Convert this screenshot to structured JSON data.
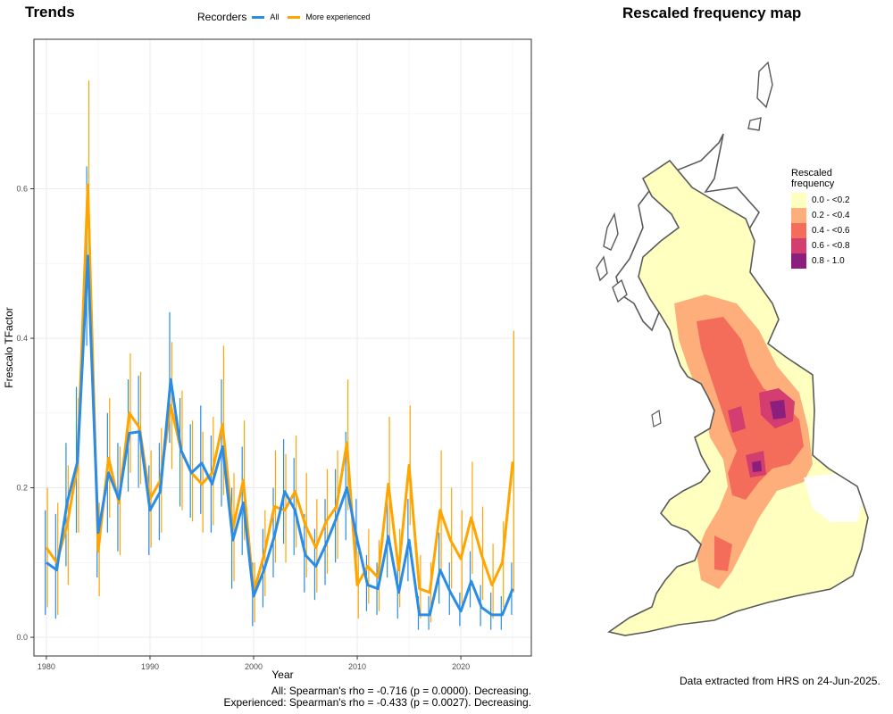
{
  "left_title": "Trends",
  "right_title": "Rescaled frequency map",
  "legend": {
    "title": "Recorders",
    "items": [
      {
        "label": "All",
        "color": "#2b8ce6"
      },
      {
        "label": "More experienced",
        "color": "#ffa500"
      }
    ]
  },
  "stats": {
    "all": "All: Spearman's rho = -0.716 (p = 0.0000). Decreasing.",
    "experienced": "Experienced: Spearman's rho = -0.433 (p = 0.0027). Decreasing."
  },
  "footnote": "Data extracted from HRS on 24-Jun-2025.",
  "map_legend": {
    "title": [
      "Rescaled",
      "frequency"
    ],
    "classes": [
      {
        "label": "0.0 - <0.2",
        "color": "#ffffbf"
      },
      {
        "label": "0.2 - <0.4",
        "color": "#fdae7b"
      },
      {
        "label": "0.4 - <0.6",
        "color": "#f46d5a"
      },
      {
        "label": "0.6 - <0.8",
        "color": "#d43d6f"
      },
      {
        "label": "0.8 - 1.0",
        "color": "#8c1e7e"
      }
    ]
  },
  "chart_data": {
    "type": "line",
    "xlabel": "Year",
    "ylabel": "Frescalo TFactor",
    "xlim": [
      1978.8,
      2026.8
    ],
    "ylim": [
      -0.025,
      0.8
    ],
    "xticks": [
      1980,
      1990,
      2000,
      2010,
      2020
    ],
    "yticks": [
      0.0,
      0.2,
      0.4,
      0.6
    ],
    "ytick_labels": [
      "0.0",
      "0.2",
      "0.4",
      "0.6"
    ],
    "grid": true,
    "x": [
      1980,
      1981,
      1982,
      1983,
      1984,
      1985,
      1986,
      1987,
      1988,
      1989,
      1990,
      1991,
      1992,
      1993,
      1994,
      1995,
      1996,
      1997,
      1998,
      1999,
      2000,
      2001,
      2002,
      2003,
      2004,
      2005,
      2006,
      2007,
      2008,
      2009,
      2010,
      2011,
      2012,
      2013,
      2014,
      2015,
      2016,
      2017,
      2018,
      2019,
      2020,
      2021,
      2022,
      2023,
      2024,
      2025
    ],
    "series": [
      {
        "name": "All",
        "color": "#2b8ce6",
        "values": [
          0.1,
          0.09,
          0.18,
          0.235,
          0.51,
          0.14,
          0.22,
          0.185,
          0.273,
          0.275,
          0.17,
          0.195,
          0.345,
          0.25,
          0.22,
          0.233,
          0.205,
          0.255,
          0.13,
          0.18,
          0.055,
          0.09,
          0.135,
          0.195,
          0.17,
          0.11,
          0.095,
          0.125,
          0.16,
          0.2,
          0.13,
          0.07,
          0.065,
          0.135,
          0.06,
          0.13,
          0.03,
          0.03,
          0.09,
          0.06,
          0.035,
          0.075,
          0.04,
          0.03,
          0.03,
          0.065
        ],
        "lower": [
          0.03,
          0.025,
          0.095,
          0.14,
          0.39,
          0.08,
          0.14,
          0.115,
          0.195,
          0.2,
          0.11,
          0.13,
          0.26,
          0.175,
          0.16,
          0.165,
          0.14,
          0.175,
          0.065,
          0.11,
          0.015,
          0.04,
          0.08,
          0.125,
          0.11,
          0.06,
          0.05,
          0.07,
          0.1,
          0.13,
          0.08,
          0.035,
          0.03,
          0.08,
          0.025,
          0.075,
          0.01,
          0.01,
          0.045,
          0.03,
          0.015,
          0.04,
          0.015,
          0.01,
          0.01,
          0.03
        ],
        "upper": [
          0.17,
          0.165,
          0.26,
          0.335,
          0.63,
          0.205,
          0.3,
          0.26,
          0.345,
          0.35,
          0.23,
          0.26,
          0.435,
          0.32,
          0.285,
          0.31,
          0.27,
          0.345,
          0.2,
          0.255,
          0.1,
          0.145,
          0.2,
          0.265,
          0.24,
          0.165,
          0.145,
          0.185,
          0.225,
          0.275,
          0.185,
          0.11,
          0.1,
          0.195,
          0.1,
          0.185,
          0.055,
          0.055,
          0.14,
          0.1,
          0.06,
          0.115,
          0.07,
          0.06,
          0.055,
          0.1
        ]
      },
      {
        "name": "More experienced",
        "color": "#ffa500",
        "values": [
          0.12,
          0.1,
          0.15,
          0.23,
          0.605,
          0.115,
          0.24,
          0.18,
          0.3,
          0.28,
          0.185,
          0.21,
          0.31,
          0.25,
          0.22,
          0.205,
          0.22,
          0.285,
          0.145,
          0.21,
          0.06,
          0.11,
          0.175,
          0.17,
          0.195,
          0.15,
          0.12,
          0.155,
          0.175,
          0.26,
          0.07,
          0.095,
          0.08,
          0.205,
          0.09,
          0.23,
          0.065,
          0.06,
          0.17,
          0.13,
          0.105,
          0.16,
          0.11,
          0.07,
          0.1,
          0.235
        ],
        "lower": [
          0.04,
          0.03,
          0.07,
          0.14,
          0.47,
          0.055,
          0.16,
          0.11,
          0.22,
          0.205,
          0.12,
          0.14,
          0.225,
          0.17,
          0.155,
          0.14,
          0.15,
          0.19,
          0.075,
          0.13,
          0.02,
          0.055,
          0.1,
          0.1,
          0.12,
          0.08,
          0.06,
          0.085,
          0.105,
          0.17,
          0.025,
          0.045,
          0.035,
          0.12,
          0.04,
          0.15,
          0.025,
          0.02,
          0.09,
          0.065,
          0.045,
          0.085,
          0.05,
          0.025,
          0.04,
          0.06
        ],
        "upper": [
          0.2,
          0.18,
          0.23,
          0.32,
          0.745,
          0.18,
          0.32,
          0.255,
          0.38,
          0.355,
          0.25,
          0.28,
          0.395,
          0.33,
          0.29,
          0.275,
          0.295,
          0.39,
          0.22,
          0.29,
          0.1,
          0.17,
          0.25,
          0.245,
          0.27,
          0.22,
          0.185,
          0.225,
          0.25,
          0.345,
          0.115,
          0.145,
          0.13,
          0.295,
          0.145,
          0.31,
          0.11,
          0.1,
          0.25,
          0.2,
          0.17,
          0.235,
          0.175,
          0.125,
          0.155,
          0.41
        ]
      }
    ]
  }
}
